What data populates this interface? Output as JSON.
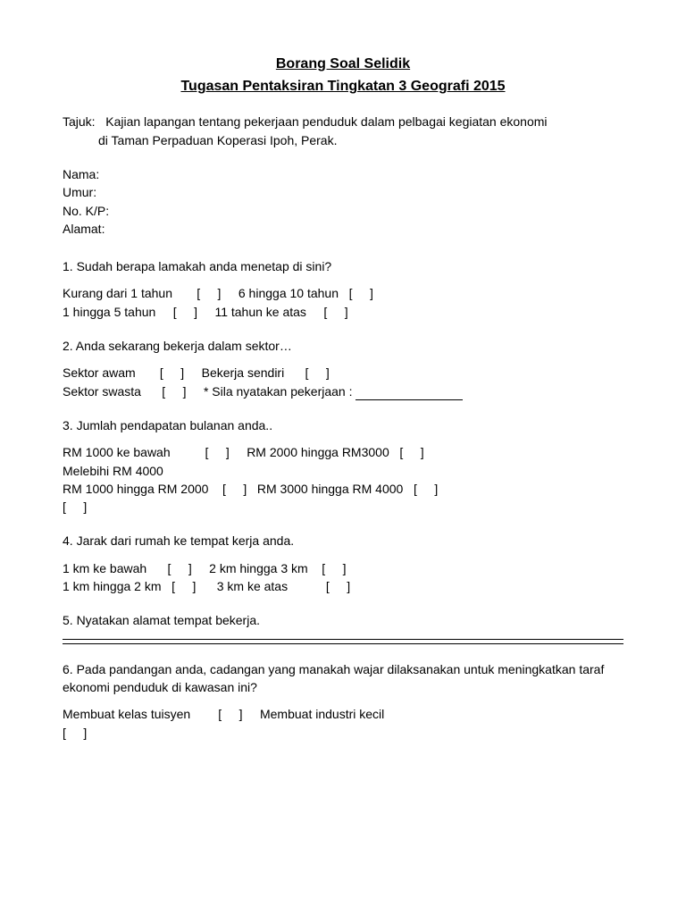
{
  "title": {
    "line1": "Borang Soal Selidik",
    "line2": "Tugasan Pentaksiran Tingkatan 3 Geografi 2015"
  },
  "tajuk": {
    "label": "Tajuk:",
    "line1": "Kajian lapangan tentang pekerjaan penduduk dalam pelbagai kegiatan ekonomi",
    "line2": "di Taman Perpaduan Koperasi Ipoh, Perak."
  },
  "fields": {
    "nama": "Nama:",
    "umur": "Umur:",
    "nokp": "No. K/P:",
    "alamat": "Alamat:"
  },
  "q1": {
    "text": "1. Sudah berapa lamakah anda menetap di sini?",
    "row1": "Kurang dari 1 tahun       [     ]     6 hingga 10 tahun   [     ]",
    "row2": "1 hingga 5 tahun     [     ]     11 tahun ke atas     [     ]"
  },
  "q2": {
    "text": "2. Anda sekarang bekerja dalam sektor…",
    "row1": "Sektor awam       [     ]     Bekerja sendiri      [     ]",
    "row2a": "Sektor swasta      [     ]     * Sila nyatakan pekerjaan : "
  },
  "q3": {
    "text": "3. Jumlah pendapatan bulanan anda..",
    "row1": "RM 1000 ke bawah          [     ]     RM 2000 hingga RM3000   [     ]",
    "row2": "Melebihi RM 4000",
    "row3": "RM 1000 hingga RM 2000    [     ]   RM 3000 hingga RM 4000   [     ]",
    "row4": "[     ]"
  },
  "q4": {
    "text": "4. Jarak dari rumah ke tempat kerja anda.",
    "row1": "1 km ke bawah      [     ]     2 km hingga 3 km    [     ]",
    "row2": "1 km hingga 2 km   [     ]      3 km ke atas           [     ]"
  },
  "q5": {
    "text": "5. Nyatakan alamat tempat bekerja."
  },
  "q6": {
    "text": "6. Pada pandangan anda, cadangan yang manakah wajar dilaksanakan untuk meningkatkan taraf ekonomi penduduk di kawasan ini?",
    "row1": "Membuat kelas tuisyen        [     ]     Membuat industri kecil",
    "row2": "[     ]"
  }
}
